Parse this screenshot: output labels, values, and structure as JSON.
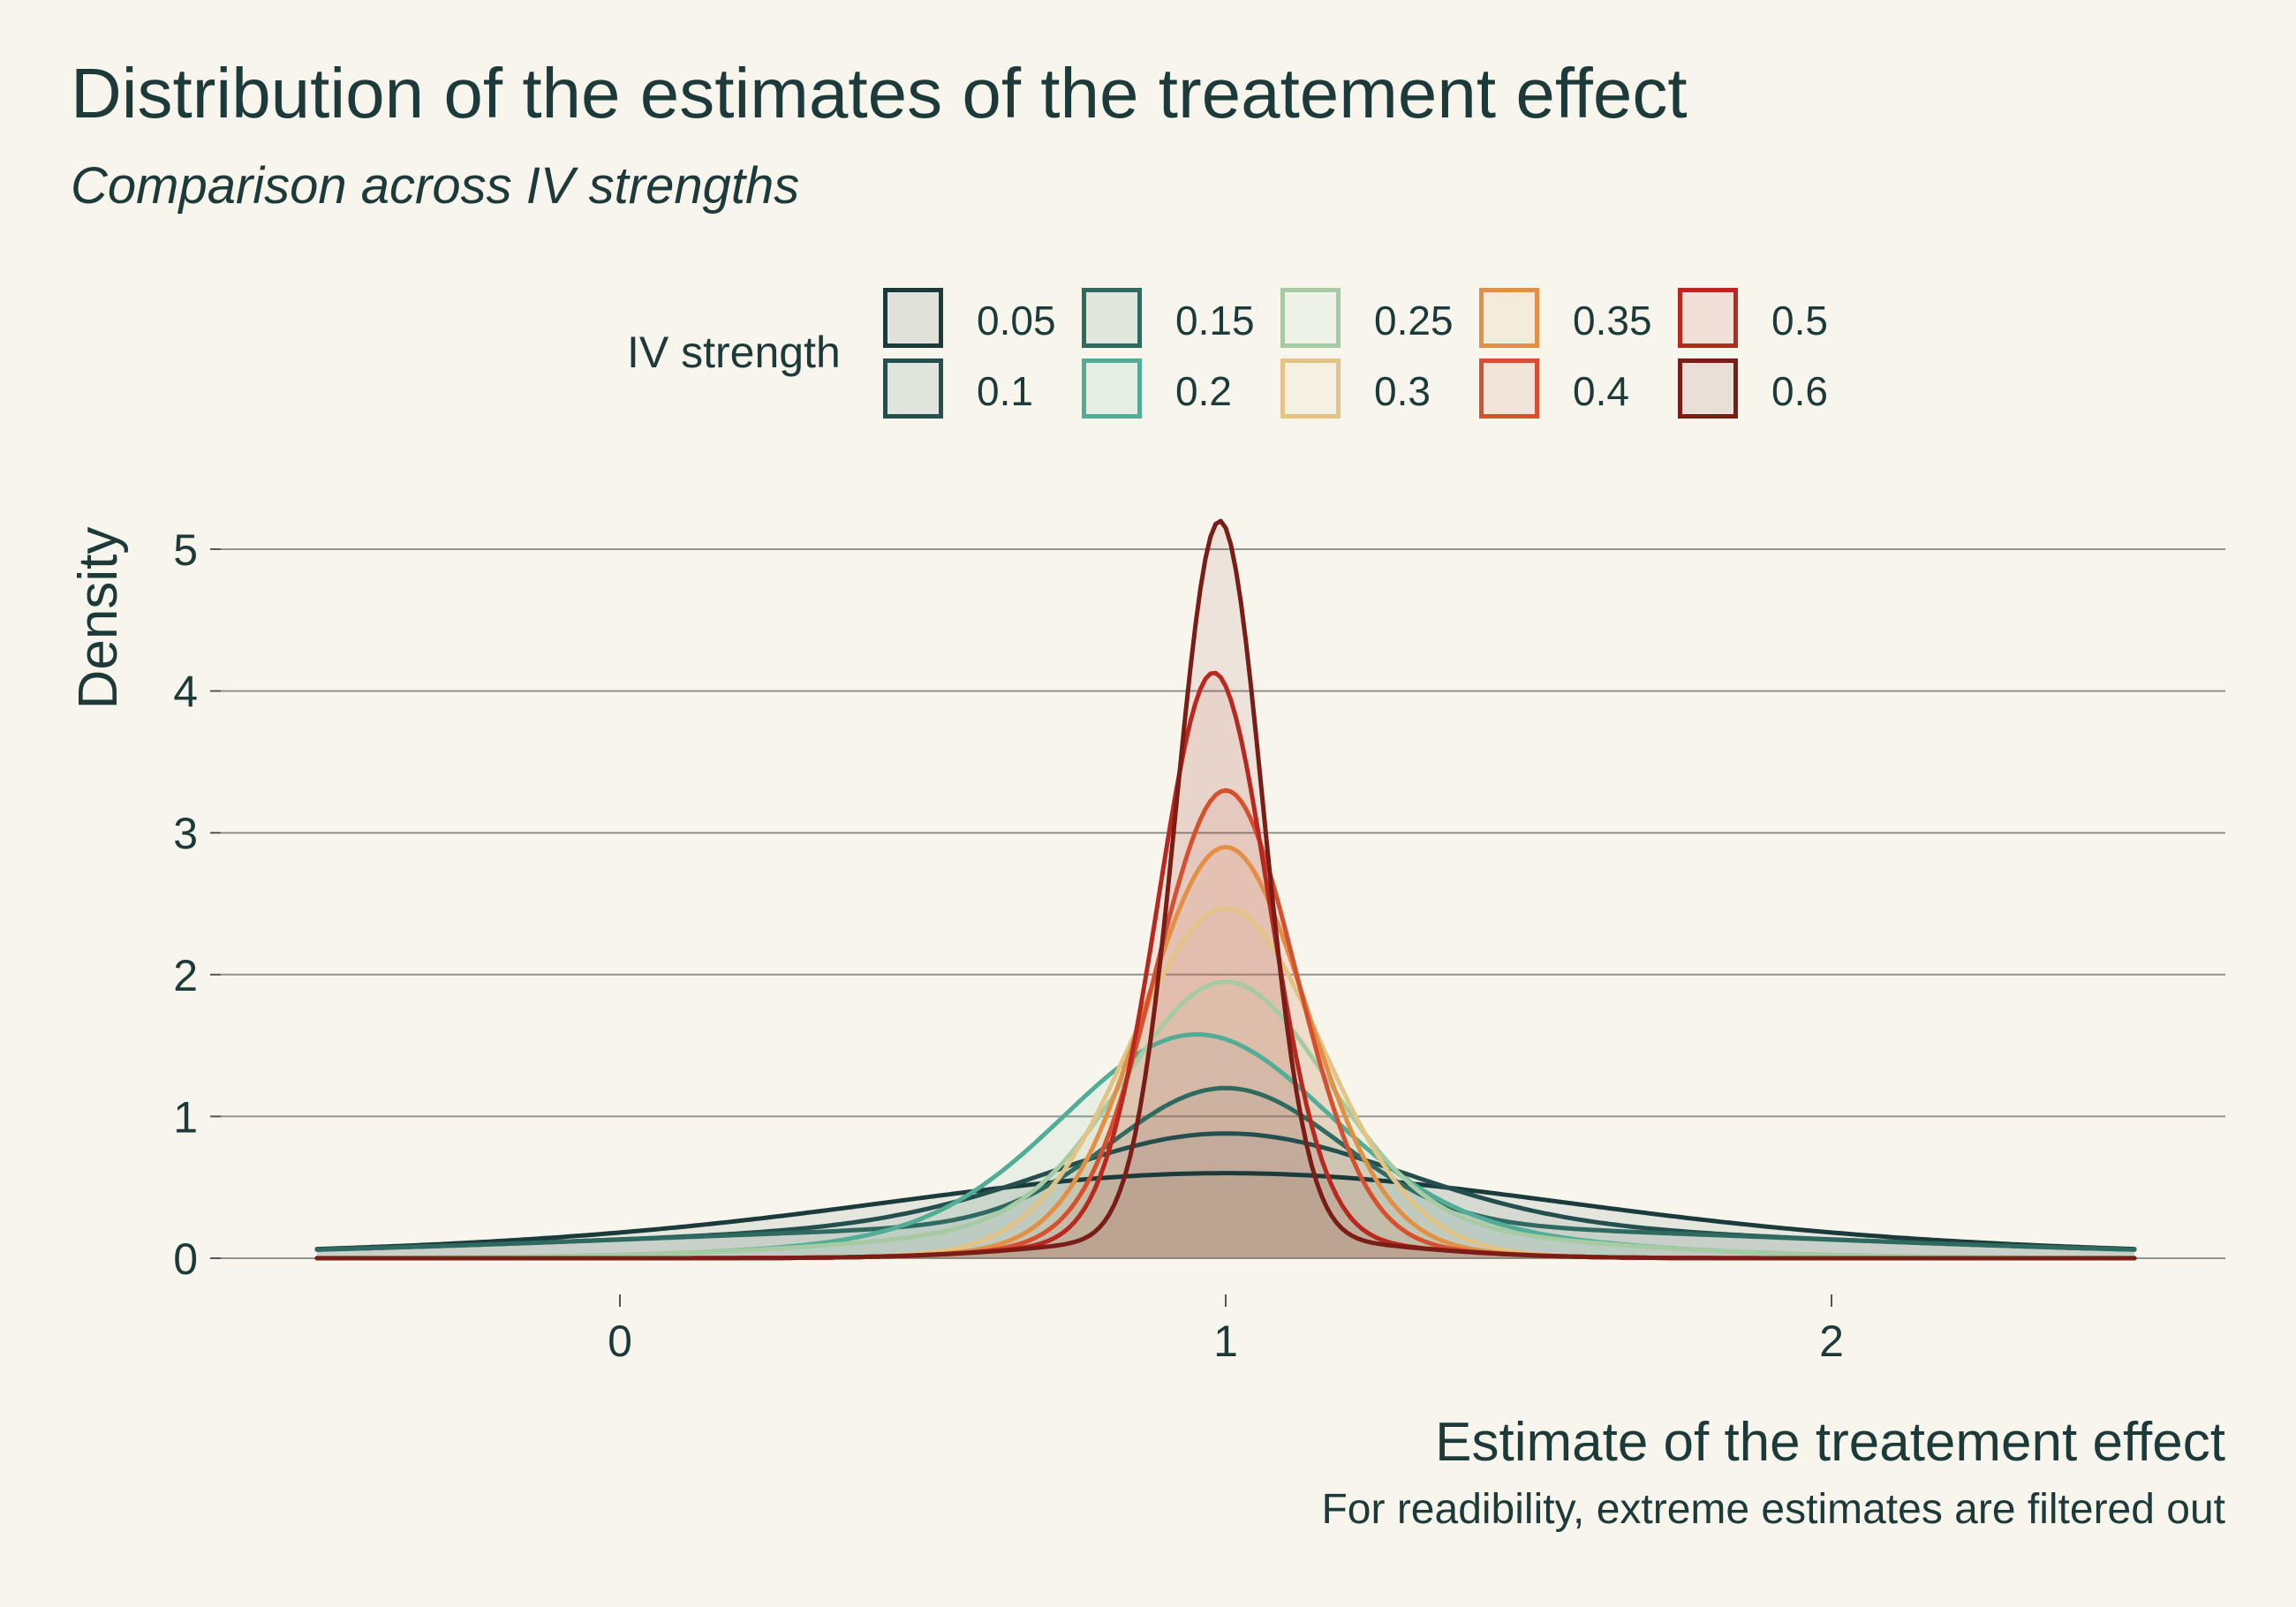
{
  "chart_data": {
    "type": "area",
    "title": "Distribution of the estimates of the treatement effect",
    "subtitle": "Comparison across IV strengths",
    "xlabel": "Estimate of the treatement effect",
    "ylabel": "Density",
    "caption": "For readibility, extreme estimates are filtered out",
    "xlim": [
      -0.5,
      2.5
    ],
    "ylim": [
      0,
      5.2
    ],
    "x_ticks": [
      0,
      1,
      2
    ],
    "x_tick_labels": [
      "0",
      "1",
      "2"
    ],
    "y_ticks": [
      0,
      1,
      2,
      3,
      4,
      5
    ],
    "y_tick_labels": [
      "0",
      "1",
      "2",
      "3",
      "4",
      "5"
    ],
    "grid": "horizontal",
    "legend_title": "IV strength",
    "legend_position": "top",
    "series": [
      {
        "name": "0.05",
        "color": "#1b3a3b",
        "peak_x": 1.0,
        "peak_y": 0.6,
        "tails": "heavy"
      },
      {
        "name": "0.1",
        "color": "#244f4e",
        "peak_x": 1.0,
        "peak_y": 0.88,
        "tails": "heavy"
      },
      {
        "name": "0.15",
        "color": "#2f6a60",
        "peak_x": 1.0,
        "peak_y": 1.2,
        "tails": "heavy"
      },
      {
        "name": "0.2",
        "color": "#52ad97",
        "peak_x": 0.95,
        "peak_y": 1.58,
        "tails": "medium"
      },
      {
        "name": "0.25",
        "color": "#a6cba2",
        "peak_x": 1.0,
        "peak_y": 1.95,
        "tails": "medium"
      },
      {
        "name": "0.3",
        "color": "#e3c386",
        "peak_x": 1.0,
        "peak_y": 2.47,
        "tails": "light"
      },
      {
        "name": "0.35",
        "color": "#e38f46",
        "peak_x": 1.0,
        "peak_y": 2.9,
        "tails": "light"
      },
      {
        "name": "0.4",
        "color": "#d6502f",
        "peak_x": 1.0,
        "peak_y": 3.3,
        "tails": "light"
      },
      {
        "name": "0.5",
        "color": "#b8281f",
        "peak_x": 0.98,
        "peak_y": 4.13,
        "tails": "light"
      },
      {
        "name": "0.6",
        "color": "#7a1d17",
        "peak_x": 0.99,
        "peak_y": 5.2,
        "tails": "light"
      }
    ]
  }
}
